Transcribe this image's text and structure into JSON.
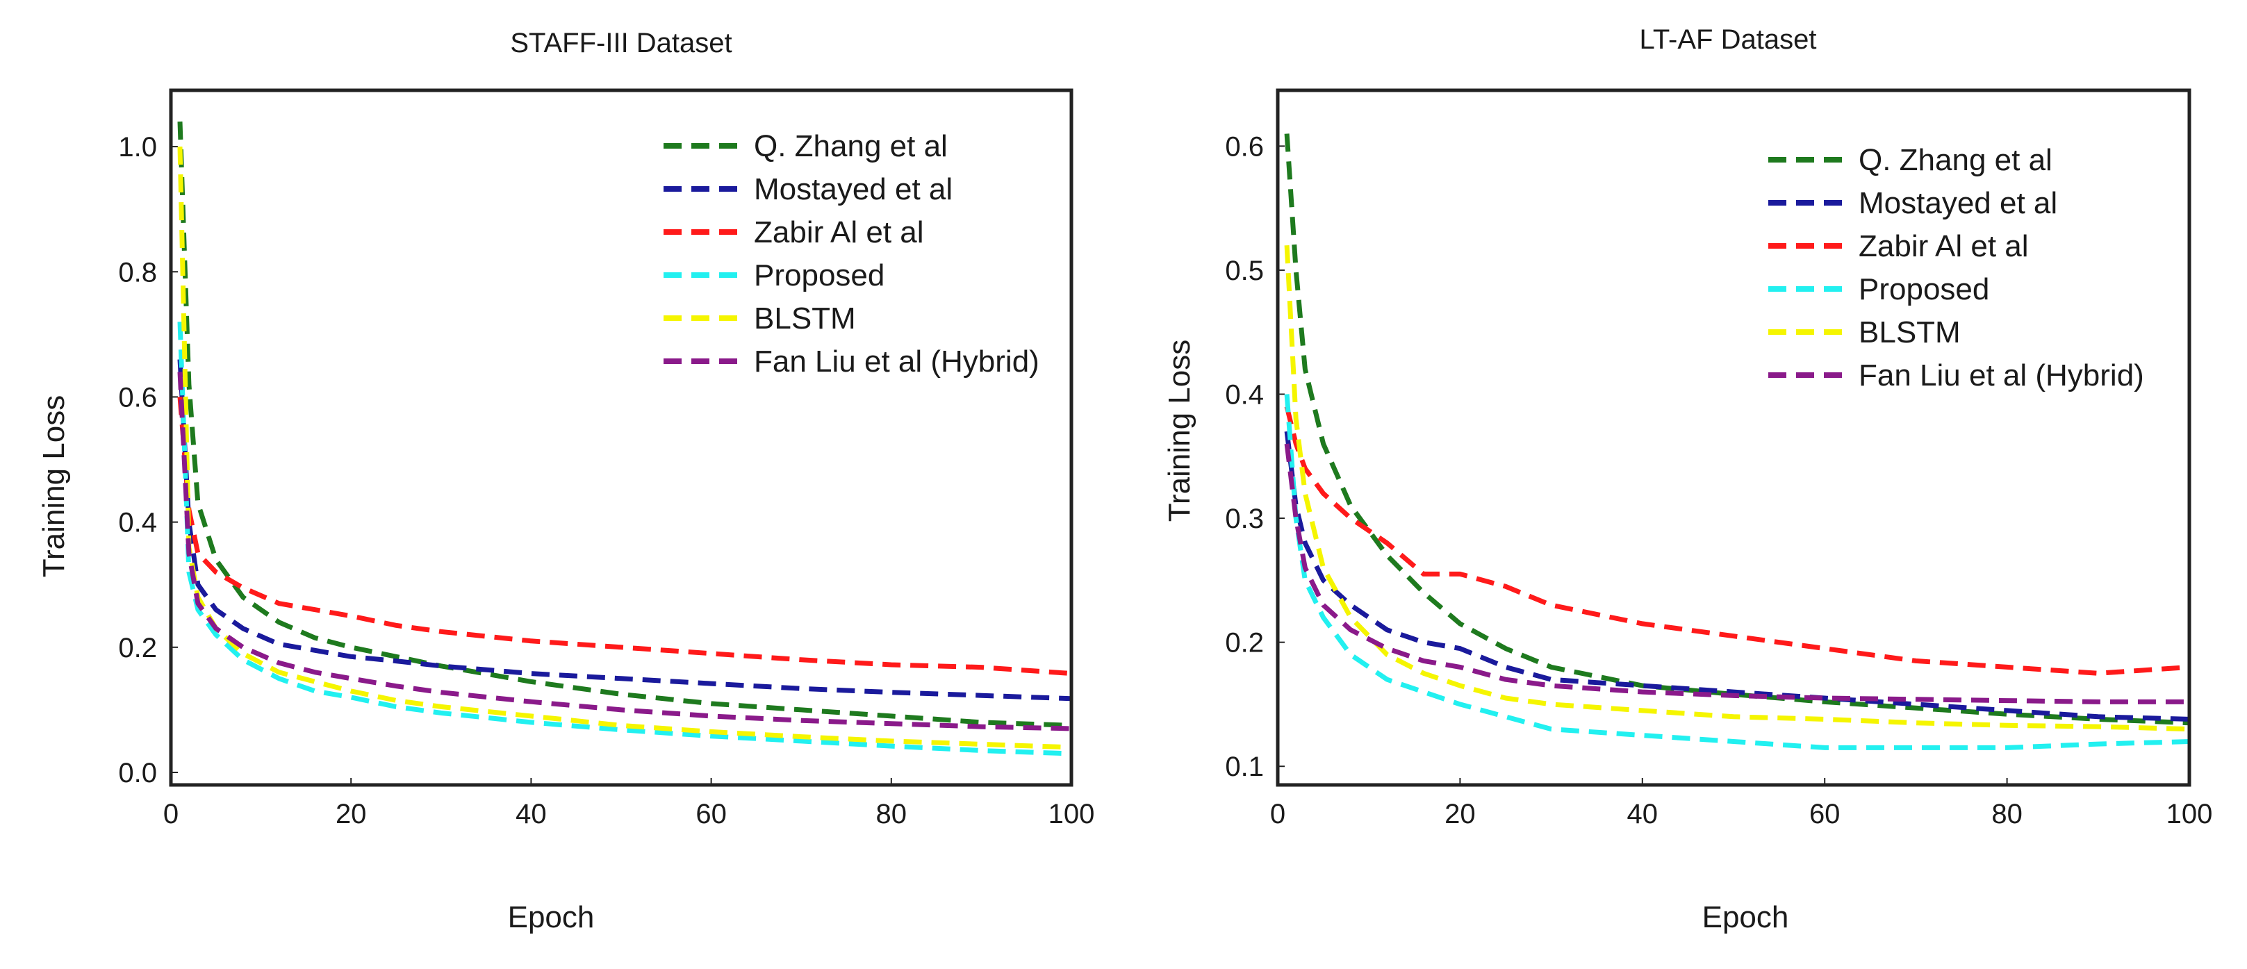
{
  "chart_data": [
    {
      "type": "line",
      "title": "STAFF-III  Dataset",
      "xlabel": "Epoch",
      "ylabel": "Training Loss",
      "xlim": [
        0,
        100
      ],
      "ylim": [
        -0.02,
        1.09
      ],
      "xticks": [
        "0",
        "20",
        "40",
        "60",
        "80",
        "100"
      ],
      "yticks": [
        "0.0",
        "0.2",
        "0.4",
        "0.6",
        "0.8",
        "1.0"
      ],
      "legend_position": "top-right",
      "series": [
        {
          "name": "Q. Zhang  et al",
          "color": "#1e7a1e",
          "x": [
            1,
            2,
            3,
            5,
            8,
            12,
            16,
            20,
            25,
            30,
            40,
            50,
            60,
            70,
            80,
            90,
            100
          ],
          "y": [
            1.04,
            0.62,
            0.43,
            0.34,
            0.28,
            0.24,
            0.215,
            0.2,
            0.185,
            0.17,
            0.145,
            0.125,
            0.11,
            0.1,
            0.09,
            0.08,
            0.075
          ]
        },
        {
          "name": "Mostayed et al",
          "color": "#1a1a9c",
          "x": [
            1,
            2,
            3,
            5,
            8,
            12,
            16,
            20,
            25,
            30,
            40,
            50,
            60,
            70,
            80,
            90,
            100
          ],
          "y": [
            0.66,
            0.4,
            0.3,
            0.26,
            0.23,
            0.205,
            0.195,
            0.185,
            0.178,
            0.17,
            0.158,
            0.15,
            0.142,
            0.134,
            0.128,
            0.123,
            0.118
          ]
        },
        {
          "name": "Zabir  Al et al",
          "color": "#ff1a1a",
          "x": [
            1,
            2,
            3,
            5,
            8,
            12,
            16,
            20,
            25,
            30,
            40,
            50,
            60,
            70,
            80,
            90,
            100
          ],
          "y": [
            0.6,
            0.42,
            0.35,
            0.32,
            0.295,
            0.27,
            0.26,
            0.25,
            0.235,
            0.225,
            0.21,
            0.2,
            0.19,
            0.18,
            0.172,
            0.168,
            0.158
          ]
        },
        {
          "name": "Proposed",
          "color": "#22f0f0",
          "x": [
            1,
            2,
            3,
            5,
            8,
            12,
            16,
            20,
            25,
            30,
            40,
            50,
            60,
            70,
            80,
            90,
            100
          ],
          "y": [
            0.72,
            0.32,
            0.26,
            0.22,
            0.18,
            0.15,
            0.13,
            0.12,
            0.105,
            0.095,
            0.08,
            0.068,
            0.058,
            0.05,
            0.042,
            0.035,
            0.03
          ]
        },
        {
          "name": "BLSTM",
          "color": "#f5f500",
          "x": [
            1,
            2,
            3,
            5,
            8,
            12,
            16,
            20,
            25,
            30,
            40,
            50,
            60,
            70,
            80,
            90,
            100
          ],
          "y": [
            1.0,
            0.36,
            0.28,
            0.23,
            0.19,
            0.16,
            0.145,
            0.13,
            0.115,
            0.105,
            0.09,
            0.075,
            0.065,
            0.057,
            0.05,
            0.045,
            0.04
          ]
        },
        {
          "name": "Fan Liu et al (Hybrid)",
          "color": "#8a1a8a",
          "x": [
            1,
            2,
            3,
            5,
            8,
            12,
            16,
            20,
            25,
            30,
            40,
            50,
            60,
            70,
            80,
            90,
            100
          ],
          "y": [
            0.64,
            0.35,
            0.27,
            0.23,
            0.2,
            0.175,
            0.16,
            0.15,
            0.138,
            0.128,
            0.113,
            0.1,
            0.09,
            0.083,
            0.078,
            0.073,
            0.07
          ]
        }
      ]
    },
    {
      "type": "line",
      "title": "LT-AF  Dataset",
      "xlabel": "Epoch",
      "ylabel": "Training Loss",
      "xlim": [
        0,
        100
      ],
      "ylim": [
        0.085,
        0.645
      ],
      "xticks": [
        "0",
        "20",
        "40",
        "60",
        "80",
        "100"
      ],
      "yticks": [
        "0.1",
        "0.2",
        "0.3",
        "0.4",
        "0.5",
        "0.6"
      ],
      "legend_position": "top-right",
      "series": [
        {
          "name": "Q. Zhang  et al",
          "color": "#1e7a1e",
          "x": [
            1,
            2,
            3,
            5,
            8,
            12,
            16,
            20,
            25,
            30,
            40,
            50,
            60,
            70,
            80,
            90,
            100
          ],
          "y": [
            0.61,
            0.5,
            0.42,
            0.36,
            0.31,
            0.27,
            0.24,
            0.215,
            0.195,
            0.18,
            0.165,
            0.158,
            0.152,
            0.147,
            0.142,
            0.138,
            0.135
          ]
        },
        {
          "name": "Mostayed et al",
          "color": "#1a1a9c",
          "x": [
            1,
            2,
            3,
            5,
            8,
            12,
            16,
            20,
            25,
            30,
            40,
            50,
            60,
            70,
            80,
            90,
            100
          ],
          "y": [
            0.37,
            0.31,
            0.28,
            0.25,
            0.23,
            0.21,
            0.2,
            0.195,
            0.18,
            0.17,
            0.165,
            0.16,
            0.155,
            0.15,
            0.145,
            0.14,
            0.138
          ]
        },
        {
          "name": "Zabir  Al et al",
          "color": "#ff1a1a",
          "x": [
            1,
            2,
            3,
            5,
            8,
            12,
            16,
            20,
            25,
            30,
            40,
            50,
            60,
            70,
            80,
            90,
            100
          ],
          "y": [
            0.39,
            0.36,
            0.34,
            0.32,
            0.3,
            0.28,
            0.255,
            0.255,
            0.245,
            0.23,
            0.215,
            0.205,
            0.195,
            0.185,
            0.18,
            0.175,
            0.18
          ]
        },
        {
          "name": "Proposed",
          "color": "#22f0f0",
          "x": [
            1,
            2,
            3,
            5,
            8,
            12,
            16,
            20,
            25,
            30,
            40,
            50,
            60,
            70,
            80,
            90,
            100
          ],
          "y": [
            0.4,
            0.3,
            0.25,
            0.22,
            0.19,
            0.17,
            0.16,
            0.15,
            0.14,
            0.13,
            0.125,
            0.12,
            0.115,
            0.115,
            0.115,
            0.118,
            0.12
          ]
        },
        {
          "name": "BLSTM",
          "color": "#f5f500",
          "x": [
            1,
            2,
            3,
            5,
            8,
            12,
            16,
            20,
            25,
            30,
            40,
            50,
            60,
            70,
            80,
            90,
            100
          ],
          "y": [
            0.52,
            0.38,
            0.32,
            0.26,
            0.22,
            0.19,
            0.175,
            0.165,
            0.155,
            0.15,
            0.145,
            0.14,
            0.138,
            0.135,
            0.133,
            0.132,
            0.13
          ]
        },
        {
          "name": "Fan Liu et al (Hybrid)",
          "color": "#8a1a8a",
          "x": [
            1,
            2,
            3,
            5,
            8,
            12,
            16,
            20,
            25,
            30,
            40,
            50,
            60,
            70,
            80,
            90,
            100
          ],
          "y": [
            0.36,
            0.3,
            0.26,
            0.23,
            0.21,
            0.195,
            0.185,
            0.18,
            0.17,
            0.165,
            0.16,
            0.157,
            0.155,
            0.154,
            0.153,
            0.152,
            0.152
          ]
        }
      ]
    }
  ]
}
